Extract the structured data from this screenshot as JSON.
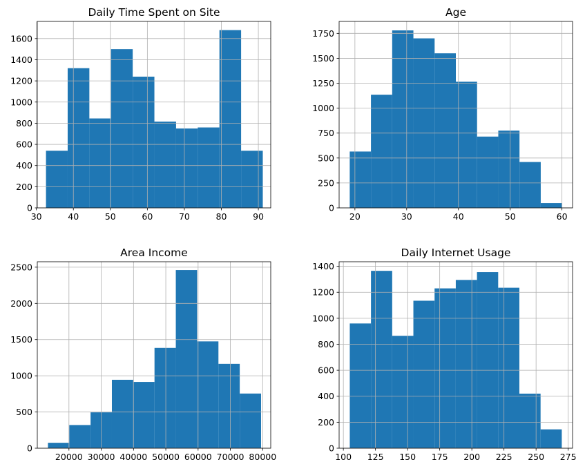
{
  "colors": {
    "bar": "#1f77b4",
    "grid": "#b0b0b0",
    "axis": "#000000",
    "background": "#ffffff"
  },
  "chart_data": [
    {
      "type": "bar",
      "subtype": "histogram",
      "title": "Daily Time Spent on Site",
      "xlabel": "",
      "ylabel": "",
      "grid": true,
      "xlim": [
        30.25,
        93.35
      ],
      "ylim": [
        0,
        1762
      ],
      "xticks": [
        30,
        40,
        50,
        60,
        70,
        80,
        90
      ],
      "yticks": [
        0,
        200,
        400,
        600,
        800,
        1000,
        1200,
        1400,
        1600
      ],
      "bin_edges": [
        32.6,
        38.46,
        44.32,
        50.18,
        56.04,
        61.9,
        67.76,
        73.62,
        79.48,
        85.34,
        91.2
      ],
      "values": [
        540,
        1320,
        845,
        1500,
        1240,
        815,
        750,
        760,
        1680,
        540
      ]
    },
    {
      "type": "bar",
      "subtype": "histogram",
      "title": "Age",
      "xlabel": "",
      "ylabel": "",
      "grid": true,
      "xlim": [
        16.95,
        62.05
      ],
      "ylim": [
        0,
        1870
      ],
      "xticks": [
        20,
        30,
        40,
        50,
        60
      ],
      "yticks": [
        0,
        250,
        500,
        750,
        1000,
        1250,
        1500,
        1750
      ],
      "bin_edges": [
        19,
        23.1,
        27.2,
        31.3,
        35.4,
        39.5,
        43.6,
        47.7,
        51.8,
        55.9,
        60
      ],
      "values": [
        565,
        1135,
        1780,
        1700,
        1550,
        1265,
        715,
        775,
        460,
        48
      ]
    },
    {
      "type": "bar",
      "subtype": "histogram",
      "title": "Area Income",
      "xlabel": "",
      "ylabel": "",
      "grid": true,
      "xlim": [
        10200,
        82500
      ],
      "ylim": [
        0,
        2575
      ],
      "xticks": [
        20000,
        30000,
        40000,
        50000,
        60000,
        70000,
        80000
      ],
      "yticks": [
        0,
        500,
        1000,
        1500,
        2000,
        2500
      ],
      "bin_edges": [
        13500,
        20100,
        26700,
        33300,
        39900,
        46500,
        53100,
        59700,
        66300,
        72900,
        79500
      ],
      "values": [
        75,
        320,
        495,
        945,
        915,
        1385,
        2460,
        1475,
        1165,
        755
      ]
    },
    {
      "type": "bar",
      "subtype": "histogram",
      "title": "Daily Internet Usage",
      "xlabel": "",
      "ylabel": "",
      "grid": true,
      "xlim": [
        96.7,
        278.4
      ],
      "ylim": [
        0,
        1435
      ],
      "xticks": [
        100,
        125,
        150,
        175,
        200,
        225,
        250,
        275
      ],
      "yticks": [
        0,
        200,
        400,
        600,
        800,
        1000,
        1200,
        1400
      ],
      "bin_edges": [
        105,
        121.5,
        138,
        154.5,
        171,
        187.5,
        204,
        220.5,
        237,
        253.5,
        270
      ],
      "values": [
        960,
        1365,
        865,
        1135,
        1230,
        1295,
        1355,
        1235,
        420,
        145
      ]
    }
  ]
}
